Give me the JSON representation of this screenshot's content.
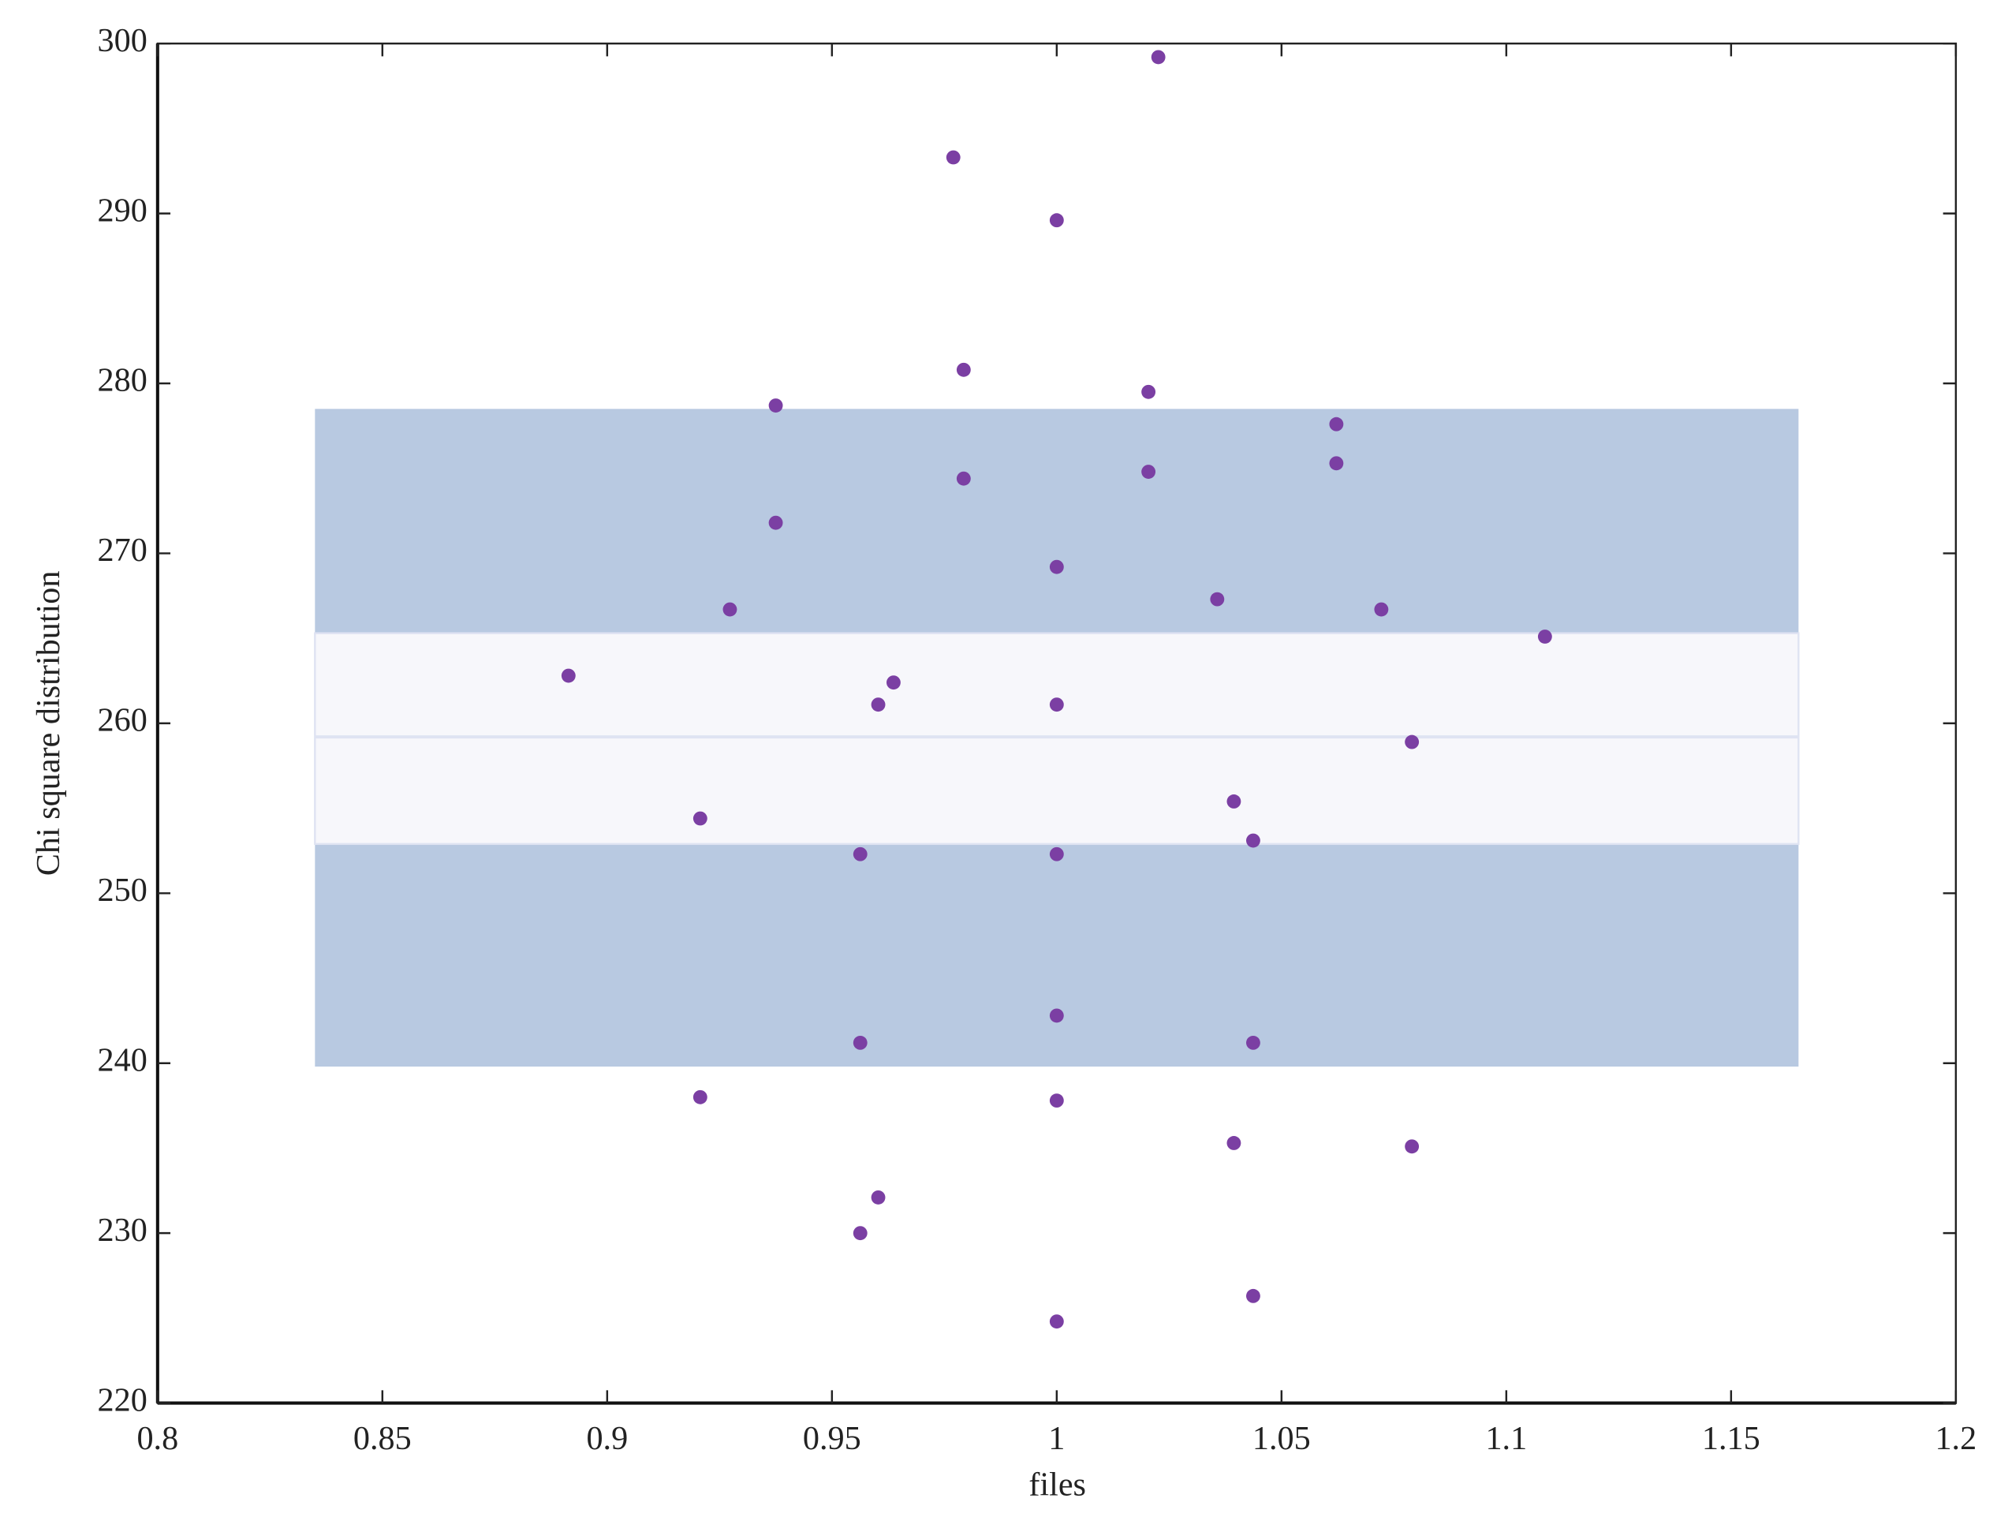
{
  "chart_data": {
    "type": "scatter",
    "xlabel": "files",
    "ylabel": "Chi square distribution",
    "xlim": [
      0.8,
      1.2
    ],
    "xticks": [
      0.8,
      0.85,
      0.9,
      0.95,
      1,
      1.05,
      1.1,
      1.15,
      1.2
    ],
    "ylim": [
      220,
      300
    ],
    "yticks": [
      220,
      230,
      240,
      250,
      260,
      270,
      280,
      290,
      300
    ],
    "band": {
      "x": [
        0.835,
        1.165
      ],
      "outer": [
        239.8,
        278.5
      ],
      "inner": [
        252.9,
        265.3
      ],
      "mean": 259.2,
      "outer_color": "#b8c9e1",
      "inner_color": "#f7f7fb",
      "edge_color": "#dfe3f2"
    },
    "series": [
      {
        "color": "#7b3fa3",
        "x": [
          1.0226,
          0.977,
          1.0,
          0.9793,
          0.9375,
          1.0204,
          1.0622,
          1.0622,
          0.9793,
          1.0204,
          0.9375,
          1.0,
          0.9273,
          1.0357,
          1.0722,
          1.1086,
          0.8914,
          0.9637,
          0.9603,
          1.0,
          1.079,
          0.9207,
          1.0394,
          1.0437,
          0.9563,
          1.0,
          1.0,
          0.9563,
          1.0437,
          0.9207,
          1.0,
          1.0394,
          1.079,
          0.9603,
          0.9563,
          1.0437,
          1.0
        ],
        "values": [
          299.2,
          293.3,
          289.6,
          280.8,
          278.7,
          279.5,
          277.6,
          275.3,
          274.4,
          274.8,
          271.8,
          269.2,
          266.7,
          267.3,
          266.7,
          265.1,
          262.8,
          262.4,
          261.1,
          261.1,
          258.9,
          254.4,
          255.4,
          253.1,
          252.3,
          252.3,
          242.8,
          241.2,
          241.2,
          238.0,
          237.8,
          235.3,
          235.1,
          232.1,
          230.0,
          226.3,
          224.8
        ]
      }
    ]
  }
}
